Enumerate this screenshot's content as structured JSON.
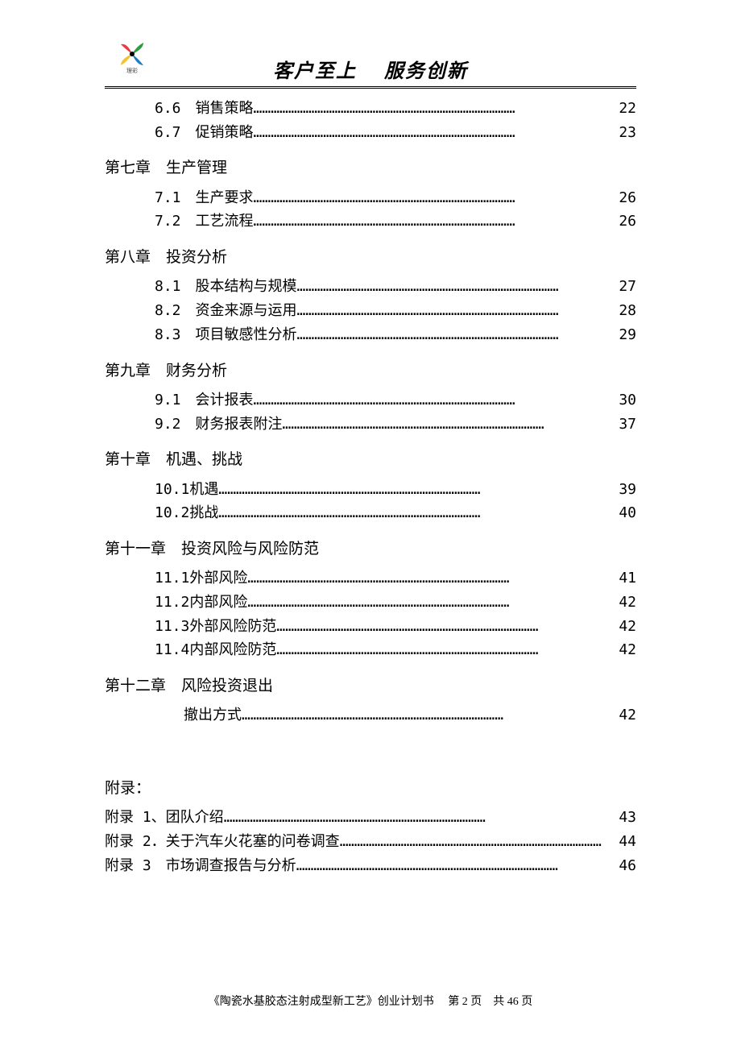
{
  "header": {
    "title": "客户至上　 服务创新"
  },
  "dots": "………………………………………………………………………………",
  "toc": {
    "pre_entries": [
      {
        "num": "6.6　",
        "label": "销售策略",
        "page": "22"
      },
      {
        "num": "6.7　",
        "label": "促销策略",
        "page": "23"
      }
    ],
    "chapters": [
      {
        "title": "第七章　生产管理",
        "entries": [
          {
            "num": "7.1　",
            "label": "生产要求",
            "page": "26"
          },
          {
            "num": "7.2　",
            "label": "工艺流程",
            "page": "26"
          }
        ]
      },
      {
        "title": "第八章　投资分析",
        "entries": [
          {
            "num": "8.1　",
            "label": "股本结构与规模",
            "page": "27"
          },
          {
            "num": "8.2　",
            "label": "资金来源与运用",
            "page": "28"
          },
          {
            "num": "8.3　",
            "label": "项目敏感性分析",
            "page": "29"
          }
        ]
      },
      {
        "title": "第九章　财务分析",
        "entries": [
          {
            "num": "9.1　",
            "label": "会计报表",
            "page": "30"
          },
          {
            "num": "9.2　",
            "label": "财务报表附注",
            "page": "37"
          }
        ]
      },
      {
        "title": "第十章　机遇、挑战",
        "entries": [
          {
            "num": "10.1 ",
            "label": "机遇",
            "page": "39"
          },
          {
            "num": "10.2 ",
            "label": "挑战",
            "page": "40"
          }
        ]
      },
      {
        "title": "第十一章　投资风险与风险防范",
        "entries": [
          {
            "num": "11.1 ",
            "label": "外部风险",
            "page": "41"
          },
          {
            "num": "11.2 ",
            "label": "内部风险",
            "page": "42"
          },
          {
            "num": "11.3 ",
            "label": "外部风险防范",
            "page": "42"
          },
          {
            "num": "11.4 ",
            "label": "内部风险防范",
            "page": "42"
          }
        ]
      },
      {
        "title": "第十二章　风险投资退出",
        "entries": [
          {
            "num": "",
            "label": "撤出方式",
            "page": "42",
            "indent": true
          }
        ]
      }
    ]
  },
  "appendix": {
    "title": "附录：",
    "entries": [
      {
        "label": "附录 1、团队介绍",
        "page": "43"
      },
      {
        "label": "附录 2．关于汽车火花塞的问卷调查",
        "page": "44"
      },
      {
        "label": "附录 3　市场调查报告与分析",
        "page": "46"
      }
    ]
  },
  "footer": {
    "text": "《陶瓷水基胶态注射成型新工艺》创业计划书　 第 2 页　共 46 页"
  },
  "logo": {
    "colors": {
      "red": "#e63946",
      "green": "#2a9d3f",
      "yellow": "#f4c430",
      "blue": "#1d7fc4",
      "black": "#000000"
    }
  }
}
